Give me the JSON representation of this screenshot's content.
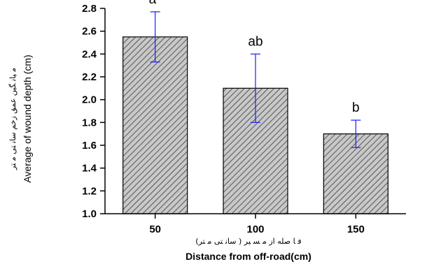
{
  "chart_data": {
    "type": "bar",
    "categories": [
      "50",
      "100",
      "150"
    ],
    "values": [
      2.55,
      2.1,
      1.7
    ],
    "error_upper": [
      2.77,
      2.4,
      1.82
    ],
    "error_lower": [
      2.33,
      1.8,
      1.58
    ],
    "significance_labels": [
      "a*",
      "ab",
      "b"
    ],
    "xlabel": "Distance from off-road(cm)",
    "xlabel_farsi": "ﻓ ﺎ ﺻﻠﻪ ﺍﺯ ﻣ ﺴ ﻴﺮ ( ﺳﺎﻧ  ﺘﯽ ﻣ ﺘﺮ)",
    "ylabel": "Average of wound depth (cm)",
    "ylabel_farsi": "ﻣ ﻴﺎﻧ ﮕﻴﻦ ﻋﻤﻖ ﺯﺧﻢ ﺳﺎﻧ  ﺘﯽ ﻣ ﺘﺮ",
    "ylim": [
      1.0,
      2.8
    ],
    "yticks": [
      "1.0",
      "1.2",
      "1.4",
      "1.6",
      "1.8",
      "2.0",
      "2.2",
      "2.4",
      "2.6",
      "2.8"
    ],
    "bar_fill": "hatched-gray",
    "error_bar_color": "#1a1aff",
    "grid": false,
    "legend": "none"
  }
}
